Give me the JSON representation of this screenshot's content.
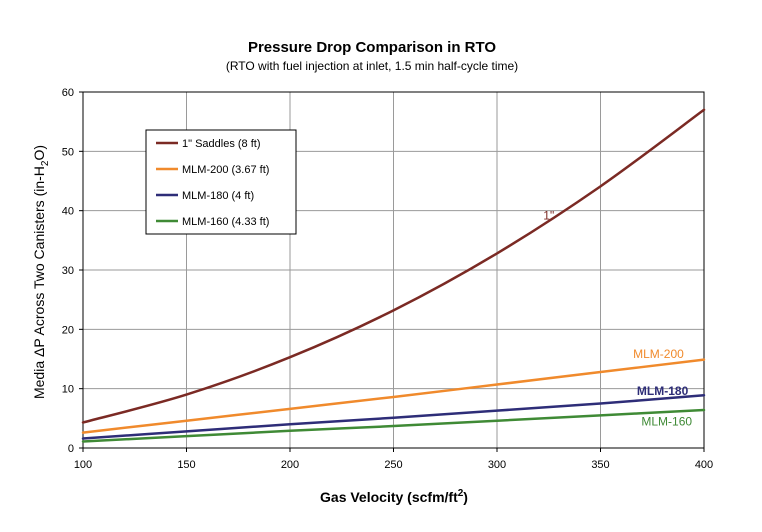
{
  "chart_data": {
    "type": "line",
    "title": "Pressure Drop Comparison in RTO",
    "subtitle": "(RTO with fuel injection at inlet, 1.5 min half-cycle time)",
    "xlabel": {
      "main": "Gas Velocity (scfm/ft",
      "sup": "2",
      "tail": ")"
    },
    "ylabel": {
      "main": "Media ΔP Across Two Canisters (in-H",
      "sub": "2",
      "tail": "O)"
    },
    "xlim": [
      100,
      400
    ],
    "ylim": [
      0,
      60
    ],
    "x_ticks": [
      "100",
      "150",
      "200",
      "250",
      "300",
      "350",
      "400"
    ],
    "y_ticks": [
      "0",
      "10",
      "20",
      "30",
      "40",
      "50",
      "60"
    ],
    "grid": true,
    "legend_position": "top-left",
    "x": [
      100,
      150,
      200,
      250,
      300,
      350,
      400
    ],
    "series": [
      {
        "name": "1\" Saddles (8 ft)",
        "color": "#7b2a24",
        "values": [
          4.3,
          9.0,
          15.3,
          23.2,
          32.8,
          44.1,
          57.0
        ],
        "annotation": "1\"",
        "annotation_x": 325,
        "annotation_y": 38.5,
        "annotation_bold": false
      },
      {
        "name": "MLM-200 (3.67 ft)",
        "color": "#f08a2c",
        "values": [
          2.6,
          4.6,
          6.6,
          8.6,
          10.7,
          12.8,
          14.9
        ],
        "annotation": "MLM-200",
        "annotation_x": 378,
        "annotation_y": 15.2,
        "annotation_bold": false
      },
      {
        "name": "MLM-180 (4 ft)",
        "color": "#2e2d78",
        "values": [
          1.6,
          2.8,
          4.0,
          5.1,
          6.3,
          7.5,
          8.9
        ],
        "annotation": "MLM-180",
        "annotation_x": 380,
        "annotation_y": 8.9,
        "annotation_bold": true
      },
      {
        "name": "MLM-160 (4.33 ft)",
        "color": "#3f8a35",
        "values": [
          1.1,
          2.0,
          2.9,
          3.7,
          4.6,
          5.5,
          6.4
        ],
        "annotation": "MLM-160",
        "annotation_x": 382,
        "annotation_y": 3.8,
        "annotation_bold": false
      }
    ]
  }
}
